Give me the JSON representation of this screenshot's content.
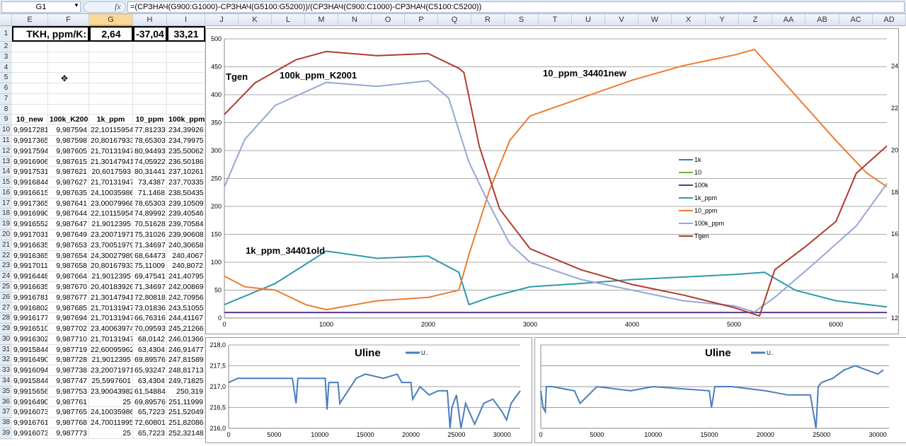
{
  "formula_bar": {
    "name_box": "G1",
    "fx_label": "fx",
    "formula": "=(СРЗНАЧ(G900:G1000)-СРЗНАЧ(G5100:G5200))/(СРЗНАЧ(C900:C1000)-СРЗНАЧ(C5100:C5200))"
  },
  "columns": [
    "E",
    "F",
    "G",
    "H",
    "I",
    "J",
    "K",
    "L",
    "M",
    "N",
    "O",
    "P",
    "Q",
    "R",
    "S",
    "T",
    "U",
    "V",
    "W",
    "X",
    "Y",
    "Z",
    "AA",
    "AB",
    "AC",
    "AD"
  ],
  "selected_column": "G",
  "row1": {
    "label": "TKH, ppm/K:",
    "g": "2,64",
    "h": "-37,04",
    "i": "33,21"
  },
  "headers": [
    "10_new",
    "100k_K2001",
    "1k_ppm",
    "10_ppm",
    "100k_ppm"
  ],
  "rows": [
    [
      "9,9917281",
      "9,987594",
      "22,10115954",
      "77,81233",
      "234,39926"
    ],
    [
      "9,9917365",
      "9,987598",
      "20,80167933",
      "78,65303",
      "234,79975"
    ],
    [
      "9,9917594",
      "9,987605",
      "21,70131947",
      "80,94493",
      "235,50062"
    ],
    [
      "9,9916906",
      "9,987615",
      "21,30147941",
      "74,05922",
      "236,50186"
    ],
    [
      "9,9917531",
      "9,987621",
      "20,6017593",
      "80,31441",
      "237,10261"
    ],
    [
      "9,9916844",
      "9,987627",
      "21,70131947",
      "73,4387",
      "237,70335"
    ],
    [
      "9,9916615",
      "9,987635",
      "24,10035986",
      "71,1468",
      "238,50435"
    ],
    [
      "9,9917365",
      "9,987641",
      "23,00079968",
      "78,65303",
      "239,10509"
    ],
    [
      "9,9916990",
      "9,987644",
      "22,10115954",
      "74,89992",
      "239,40546"
    ],
    [
      "9,9916552",
      "9,987647",
      "21,9012395",
      "70,51628",
      "239,70584"
    ],
    [
      "9,9917031",
      "9,987649",
      "23,20071971",
      "75,31026",
      "239,90608"
    ],
    [
      "9,9916635",
      "9,987653",
      "23,70051979",
      "71,34697",
      "240,30658"
    ],
    [
      "9,9916365",
      "9,987654",
      "24,30027989",
      "68,64473",
      "240,4067"
    ],
    [
      "9,9917011",
      "9,987658",
      "20,80167933",
      "75,11009",
      "240,8072"
    ],
    [
      "9,9916448",
      "9,987664",
      "21,9012395",
      "69,47541",
      "241,40795"
    ],
    [
      "9,9916635",
      "9,987670",
      "20,40183926",
      "71,34697",
      "242,00869"
    ],
    [
      "9,9916781",
      "9,987677",
      "21,30147941",
      "72,80818",
      "242,70956"
    ],
    [
      "9,9916802",
      "9,987685",
      "21,70131947",
      "73,01836",
      "243,51055"
    ],
    [
      "9,9916177",
      "9,987694",
      "21,70131947",
      "66,76316",
      "244,41167"
    ],
    [
      "9,9916510",
      "9,987702",
      "23,40063974",
      "70,09593",
      "245,21266"
    ],
    [
      "9,9916302",
      "9,987710",
      "21,70131947",
      "68,0142",
      "246,01366"
    ],
    [
      "9,9915844",
      "9,987719",
      "22,60095962",
      "63,4304",
      "246,91477"
    ],
    [
      "9,9916490",
      "9,987728",
      "21,9012395",
      "69,89576",
      "247,81589"
    ],
    [
      "9,9916094",
      "9,987738",
      "23,20071971",
      "65,93247",
      "248,81713"
    ],
    [
      "9,9915844",
      "9,987747",
      "25,5997601",
      "63,4304",
      "249,71825"
    ],
    [
      "9,9915656",
      "9,987753",
      "23,90043982",
      "61,54884",
      "250,319"
    ],
    [
      "9,9916490",
      "9,987761",
      "25",
      "69,89576",
      "251,11999"
    ],
    [
      "9,9916073",
      "9,987765",
      "24,10035986",
      "65,7223",
      "251,52049"
    ],
    [
      "9,9916761",
      "9,987768",
      "24,70011995",
      "72,60801",
      "251,82086"
    ],
    [
      "9,9916073",
      "9,987773",
      "25",
      "65,7223",
      "252,32148"
    ]
  ],
  "chart_data": [
    {
      "type": "line",
      "title": "",
      "x_ticks": [
        "0",
        "1000",
        "2000",
        "3000",
        "4000",
        "5000",
        "6000"
      ],
      "y_ticks": [
        "0",
        "50",
        "100",
        "150",
        "200",
        "250",
        "300",
        "350",
        "400",
        "450",
        "500"
      ],
      "y2_ticks": [
        "12",
        "14",
        "16",
        "18",
        "20",
        "22",
        "24"
      ],
      "xlim": [
        0,
        6500
      ],
      "ylim": [
        0,
        500
      ],
      "y2lim": [
        12,
        25.3
      ],
      "grid": true,
      "legend": "center-right",
      "annotations": [
        "Tgen",
        "100k_ppm_K2001",
        "10_ppm_34401new",
        "1k_ppm_34401old"
      ],
      "series": [
        {
          "name": "1k",
          "color": "#4472c4",
          "axis": "left",
          "x": [],
          "y": []
        },
        {
          "name": "10",
          "color": "#70ad47",
          "axis": "left",
          "x": [],
          "y": []
        },
        {
          "name": "100k",
          "color": "#5b3a8c",
          "axis": "left",
          "x": [
            0,
            6500
          ],
          "y": [
            10,
            10
          ]
        },
        {
          "name": "1k_ppm",
          "color": "#2e9aa6",
          "axis": "left",
          "x": [
            0,
            500,
            1000,
            1500,
            2000,
            2300,
            2400,
            2600,
            3000,
            3500,
            4000,
            5000,
            5300,
            5600,
            6000,
            6500
          ],
          "y": [
            24,
            62,
            120,
            107,
            111,
            82,
            24,
            37,
            56,
            62,
            69,
            78,
            82,
            50,
            31,
            20
          ]
        },
        {
          "name": "10_ppm",
          "color": "#ed7d31",
          "axis": "left",
          "x": [
            0,
            200,
            500,
            800,
            1000,
            1500,
            2000,
            2300,
            2400,
            2600,
            2800,
            3000,
            3500,
            4000,
            4500,
            5000,
            5200,
            5500,
            6000,
            6300,
            6500
          ],
          "y": [
            75,
            56,
            50,
            24,
            15,
            31,
            37,
            50,
            114,
            228,
            318,
            362,
            394,
            426,
            452,
            471,
            481,
            420,
            318,
            260,
            235
          ]
        },
        {
          "name": "100k_ppm",
          "color": "#95a8d2",
          "axis": "left",
          "x": [
            0,
            200,
            500,
            1000,
            1500,
            2000,
            2200,
            2400,
            2600,
            2800,
            3000,
            3500,
            4000,
            4500,
            5000,
            5200,
            5400,
            5800,
            6200,
            6500
          ],
          "y": [
            235,
            320,
            381,
            422,
            415,
            425,
            394,
            279,
            203,
            133,
            100,
            69,
            50,
            31,
            22,
            11,
            37,
            100,
            165,
            241
          ]
        },
        {
          "name": "Tgen",
          "color": "#b03a2e",
          "axis": "right",
          "x": [
            0,
            300,
            700,
            1000,
            1500,
            2000,
            2300,
            2350,
            2500,
            2700,
            3000,
            3500,
            4000,
            4500,
            5000,
            5250,
            5400,
            5700,
            6000,
            6200,
            6500
          ],
          "y": [
            21.7,
            23.2,
            24.3,
            24.7,
            24.5,
            24.6,
            23.9,
            23.7,
            20.2,
            17.2,
            15.3,
            14.3,
            13.6,
            13.1,
            12.5,
            12.1,
            14.3,
            15.4,
            16.6,
            18.9,
            20.2
          ]
        }
      ]
    },
    {
      "type": "line",
      "title": "Uline",
      "legend_label": "U..",
      "color": "#4a7ebb",
      "x_ticks": [
        "0",
        "5000",
        "10000",
        "15000",
        "20000",
        "25000",
        "30000"
      ],
      "y_ticks": [
        "216,0",
        "216,5",
        "217,0",
        "217,5",
        "218,0"
      ],
      "xlim": [
        0,
        32000
      ],
      "ylim": [
        216,
        218
      ],
      "grid": true,
      "legend": "top",
      "x": [
        0,
        1000,
        3000,
        5000,
        7000,
        7400,
        7600,
        9000,
        10600,
        10800,
        11000,
        12000,
        12200,
        14000,
        15000,
        17000,
        18500,
        19000,
        20000,
        20200,
        21000,
        22000,
        23000,
        24000,
        24300,
        24500,
        25000,
        25500,
        26000,
        27000,
        28000,
        29000,
        30000,
        30500,
        31000,
        32000
      ],
      "y": [
        217.1,
        217.2,
        217.2,
        217.2,
        217.2,
        216.6,
        217.2,
        217.2,
        217.2,
        216.45,
        217.1,
        217.1,
        216.6,
        217.2,
        217.3,
        217.2,
        217.3,
        217.1,
        217.1,
        216.7,
        217.0,
        216.8,
        216.9,
        216.9,
        216.0,
        216.5,
        216.8,
        216.0,
        216.6,
        216.1,
        216.6,
        216.7,
        216.4,
        216.2,
        216.6,
        216.9
      ]
    },
    {
      "type": "line",
      "title": "Uline",
      "legend_label": "U..",
      "color": "#4a7ebb",
      "x_ticks": [
        "0",
        "5000",
        "10000",
        "15000",
        "20000",
        "25000",
        "30000"
      ],
      "y_ticks": [],
      "xlim": [
        0,
        31000
      ],
      "ylim": [
        216,
        218
      ],
      "grid": true,
      "legend": "top",
      "x": [
        0,
        200,
        400,
        500,
        1000,
        3000,
        3500,
        5000,
        8000,
        10000,
        15000,
        15200,
        15500,
        17000,
        20000,
        22000,
        24000,
        24500,
        24700,
        25000,
        26000,
        27000,
        28000,
        29000,
        30000,
        30500
      ],
      "y": [
        216.9,
        216.5,
        216.4,
        217.0,
        217.0,
        216.9,
        216.6,
        217.0,
        216.9,
        217.0,
        216.9,
        216.5,
        217.0,
        217.0,
        216.9,
        216.8,
        216.8,
        216.0,
        217.0,
        217.1,
        217.2,
        217.4,
        217.5,
        217.4,
        217.3,
        217.4
      ]
    }
  ]
}
